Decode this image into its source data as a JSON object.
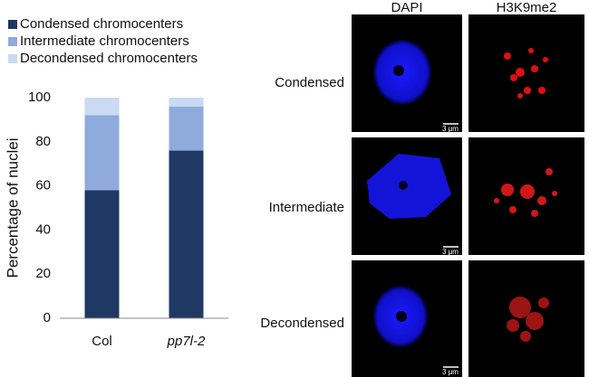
{
  "chart_data": {
    "type": "stacked_bar",
    "categories": [
      "Col",
      "pp7l-2"
    ],
    "series": [
      {
        "name": "Condensed chromocenters",
        "color": "#1f3864",
        "values": [
          58,
          76
        ]
      },
      {
        "name": "Intermediate chromocenters",
        "color": "#8faadc",
        "values": [
          34,
          20
        ]
      },
      {
        "name": "Decondensed chromocenters",
        "color": "#c9daf2",
        "values": [
          8,
          4
        ]
      }
    ],
    "y_label": "Percentage of nuclei",
    "ylim": [
      0,
      100
    ],
    "yticks": [
      0,
      20,
      40,
      60,
      80,
      100
    ],
    "grid": false,
    "legend": "top-left"
  },
  "panel": {
    "columns": [
      "DAPI",
      "H3K9me2"
    ],
    "rows": [
      "Condensed",
      "Intermediate",
      "Decondensed"
    ],
    "scale_bar": "3 μm"
  }
}
